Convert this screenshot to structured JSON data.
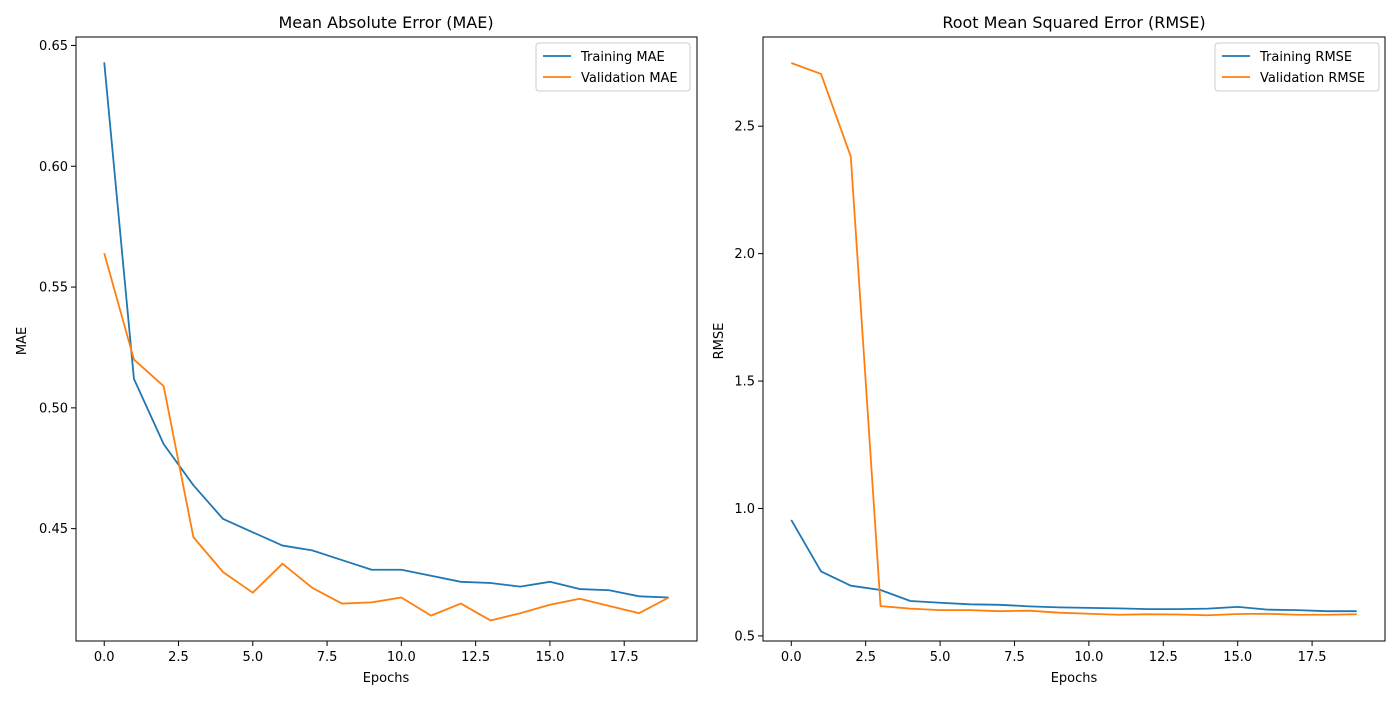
{
  "chart_data": [
    {
      "type": "line",
      "title": "Mean Absolute Error (MAE)",
      "xlabel": "Epochs",
      "ylabel": "MAE",
      "xlim": [
        -0.95,
        19.95
      ],
      "ylim": [
        0.4035,
        0.6535
      ],
      "xticks": [
        0.0,
        2.5,
        5.0,
        7.5,
        10.0,
        12.5,
        15.0,
        17.5
      ],
      "xtick_labels": [
        "0.0",
        "2.5",
        "5.0",
        "7.5",
        "10.0",
        "12.5",
        "15.0",
        "17.5"
      ],
      "yticks": [
        0.45,
        0.5,
        0.55,
        0.6,
        0.65
      ],
      "ytick_labels": [
        "0.45",
        "0.50",
        "0.55",
        "0.60",
        "0.65"
      ],
      "grid": false,
      "legend_position": "top-right",
      "x": [
        0,
        1,
        2,
        3,
        4,
        5,
        6,
        7,
        8,
        9,
        10,
        11,
        12,
        13,
        14,
        15,
        16,
        17,
        18,
        19
      ],
      "series": [
        {
          "name": "Training MAE",
          "color": "#1f77b4",
          "values": [
            0.643,
            0.512,
            0.485,
            0.468,
            0.454,
            0.4485,
            0.443,
            0.441,
            0.437,
            0.433,
            0.433,
            0.4305,
            0.428,
            0.4275,
            0.426,
            0.428,
            0.425,
            0.4245,
            0.422,
            0.4215
          ]
        },
        {
          "name": "Validation MAE",
          "color": "#ff7f0e",
          "values": [
            0.564,
            0.52,
            0.509,
            0.4465,
            0.432,
            0.4235,
            0.4355,
            0.4255,
            0.419,
            0.4195,
            0.4215,
            0.414,
            0.419,
            0.412,
            0.415,
            0.4185,
            0.421,
            0.418,
            0.415,
            0.4215
          ]
        }
      ]
    },
    {
      "type": "line",
      "title": "Root Mean Squared Error (RMSE)",
      "xlabel": "Epochs",
      "ylabel": "RMSE",
      "xlim": [
        -0.95,
        19.95
      ],
      "ylim": [
        0.48,
        2.85
      ],
      "xticks": [
        0.0,
        2.5,
        5.0,
        7.5,
        10.0,
        12.5,
        15.0,
        17.5
      ],
      "xtick_labels": [
        "0.0",
        "2.5",
        "5.0",
        "7.5",
        "10.0",
        "12.5",
        "15.0",
        "17.5"
      ],
      "yticks": [
        0.5,
        1.0,
        1.5,
        2.0,
        2.5
      ],
      "ytick_labels": [
        "0.5",
        "1.0",
        "1.5",
        "2.0",
        "2.5"
      ],
      "grid": false,
      "legend_position": "top-right",
      "x": [
        0,
        1,
        2,
        3,
        4,
        5,
        6,
        7,
        8,
        9,
        10,
        11,
        12,
        13,
        14,
        15,
        16,
        17,
        18,
        19
      ],
      "series": [
        {
          "name": "Training RMSE",
          "color": "#1f77b4",
          "values": [
            0.955,
            0.753,
            0.697,
            0.68,
            0.637,
            0.63,
            0.624,
            0.622,
            0.616,
            0.612,
            0.61,
            0.608,
            0.605,
            0.605,
            0.607,
            0.614,
            0.603,
            0.601,
            0.597,
            0.597
          ]
        },
        {
          "name": "Validation RMSE",
          "color": "#ff7f0e",
          "values": [
            2.748,
            2.705,
            2.381,
            0.617,
            0.607,
            0.601,
            0.601,
            0.597,
            0.599,
            0.591,
            0.587,
            0.583,
            0.585,
            0.584,
            0.581,
            0.586,
            0.587,
            0.583,
            0.583,
            0.585
          ]
        }
      ]
    }
  ]
}
